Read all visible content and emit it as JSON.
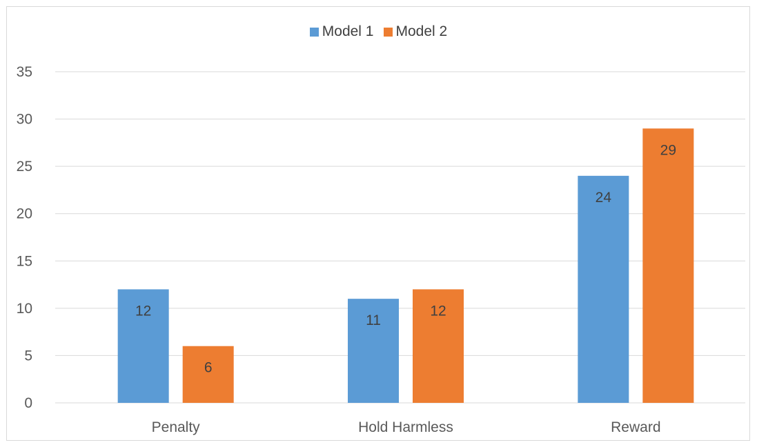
{
  "chart_data": {
    "type": "bar",
    "categories": [
      "Penalty",
      "Hold Harmless",
      "Reward"
    ],
    "series": [
      {
        "name": "Model 1",
        "color": "#5B9BD5",
        "values": [
          12,
          11,
          24
        ]
      },
      {
        "name": "Model 2",
        "color": "#ED7D31",
        "values": [
          6,
          12,
          29
        ]
      }
    ],
    "title": "",
    "xlabel": "",
    "ylabel": "",
    "ylim": [
      0,
      35
    ],
    "yticks": [
      0,
      5,
      10,
      15,
      20,
      25,
      30,
      35
    ],
    "grid": true,
    "legend_position": "top",
    "data_labels": true,
    "gridline_color": "#d9d9d9"
  }
}
